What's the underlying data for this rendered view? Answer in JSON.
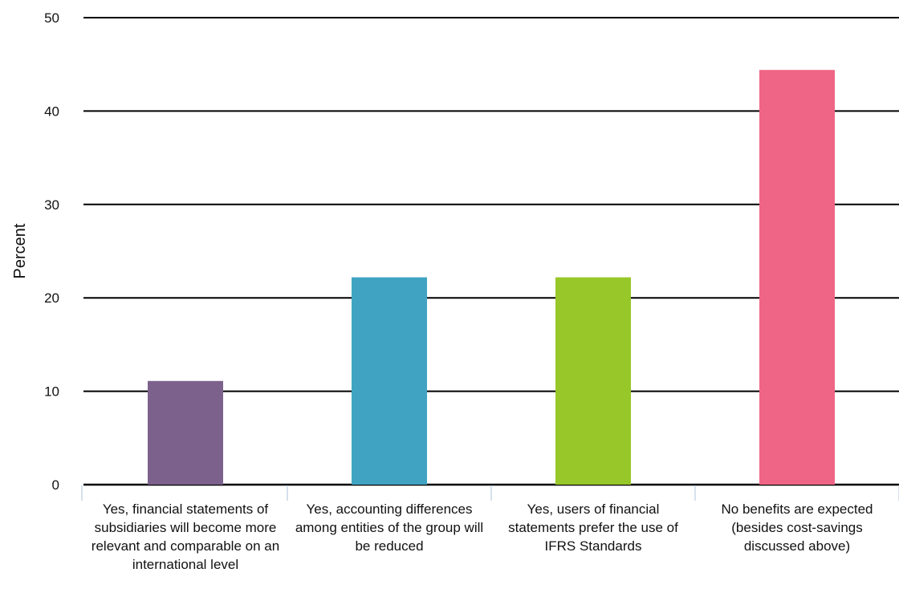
{
  "chart_data": {
    "type": "bar",
    "ylabel": "Percent",
    "xlabel": "",
    "ylim": [
      0,
      50
    ],
    "yticks": [
      0,
      10,
      20,
      30,
      40,
      50
    ],
    "grid": true,
    "categories": [
      "Yes, financial statements of subsidiaries will become more relevant and comparable on an international level",
      "Yes, accounting differences among entities of the group will be reduced",
      "Yes, users of financial statements prefer the use of IFRS Standards",
      "No benefits are expected (besides cost-savings discussed above)"
    ],
    "values": [
      11.1,
      22.2,
      22.2,
      44.4
    ],
    "colors": [
      "#7d618d",
      "#41a3c2",
      "#97c728",
      "#ef6585"
    ]
  }
}
